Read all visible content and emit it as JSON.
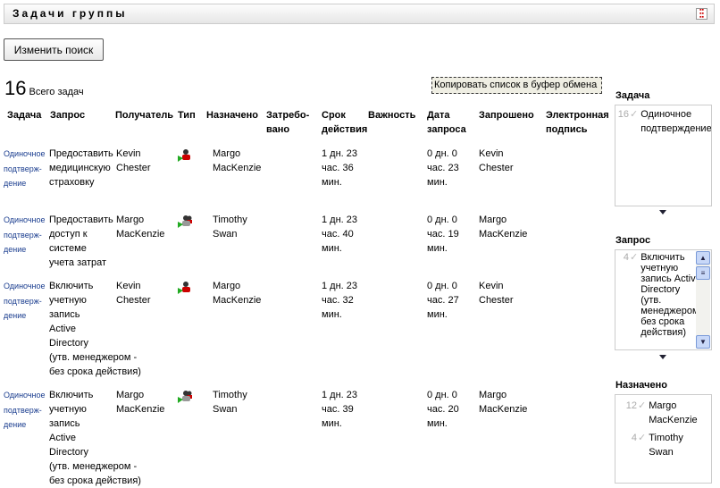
{
  "header": {
    "title": "Задачи группы",
    "icon": "grid-icon"
  },
  "toolbar": {
    "modify_search": "Изменить поиск",
    "copy_list": "Копировать список в буфер обмена"
  },
  "summary": {
    "count": "16",
    "label": "Всего задач"
  },
  "table": {
    "columns": [
      "Задача",
      "Запрос",
      "Получатель",
      "Тип",
      "Назначено",
      "Затребо-\nвано",
      "Срок\nдействия",
      "Важность",
      "Дата\nзапроса",
      "Запрошено",
      "Электронная\nподпись"
    ],
    "rows": [
      {
        "task": "Одиночное\nподтверж-\nдение",
        "request": "Предоставить\nмедицинскую\nстраховку",
        "recipient": "Kevin\nChester",
        "type": "user-task-icon",
        "assigned": "Margo\nMacKenzie",
        "claimed": "",
        "due": "1 дн. 23\nчас. 36\nмин.",
        "priority": "",
        "request_date": "0 дн. 0\nчас. 23\nмин.",
        "requested_by": "Kevin\nChester",
        "signature": ""
      },
      {
        "task": "Одиночное\nподтверж-\nдение",
        "request": "Предоставить\nдоступ к\nсистеме\nучета затрат",
        "recipient": "Margo\nMacKenzie",
        "type": "group-task-icon",
        "assigned": "Timothy\nSwan",
        "claimed": "",
        "due": "1 дн. 23\nчас. 40\nмин.",
        "priority": "",
        "request_date": "0 дн. 0\nчас. 19\nмин.",
        "requested_by": "Margo\nMacKenzie",
        "signature": ""
      },
      {
        "task": "Одиночное\nподтверж-\nдение",
        "request": "Включить\nучетную\nзапись\nActive\nDirectory\n(утв. менеджером -\nбез срока действия)",
        "recipient": "Kevin\nChester",
        "type": "user-task-icon",
        "assigned": "Margo\nMacKenzie",
        "claimed": "",
        "due": "1 дн. 23\nчас. 32\nмин.",
        "priority": "",
        "request_date": "0 дн. 0\nчас. 27\nмин.",
        "requested_by": "Kevin\nChester",
        "signature": ""
      },
      {
        "task": "Одиночное\nподтверж-\nдение",
        "request": "Включить\nучетную\nзапись\nActive\nDirectory\n(утв. менеджером -\nбез срока действия)",
        "recipient": "Margo\nMacKenzie",
        "type": "group-task-icon",
        "assigned": "Timothy\nSwan",
        "claimed": "",
        "due": "1 дн. 23\nчас. 39\nмин.",
        "priority": "",
        "request_date": "0 дн. 0\nчас. 20\nмин.",
        "requested_by": "Margo\nMacKenzie",
        "signature": ""
      }
    ]
  },
  "filters": [
    {
      "label": "Задача",
      "items": [
        {
          "count": "16",
          "text": "Одиночное подтверждение"
        }
      ]
    },
    {
      "label": "Запрос",
      "items": [
        {
          "count": "4",
          "text": "Включить учетную запись Active Directory (утв. менеджером-без срока действия)"
        }
      ]
    },
    {
      "label": "Назначено",
      "items": [
        {
          "count": "12",
          "text": "Margo MacKenzie"
        },
        {
          "count": "4",
          "text": "Timothy Swan"
        }
      ]
    }
  ]
}
